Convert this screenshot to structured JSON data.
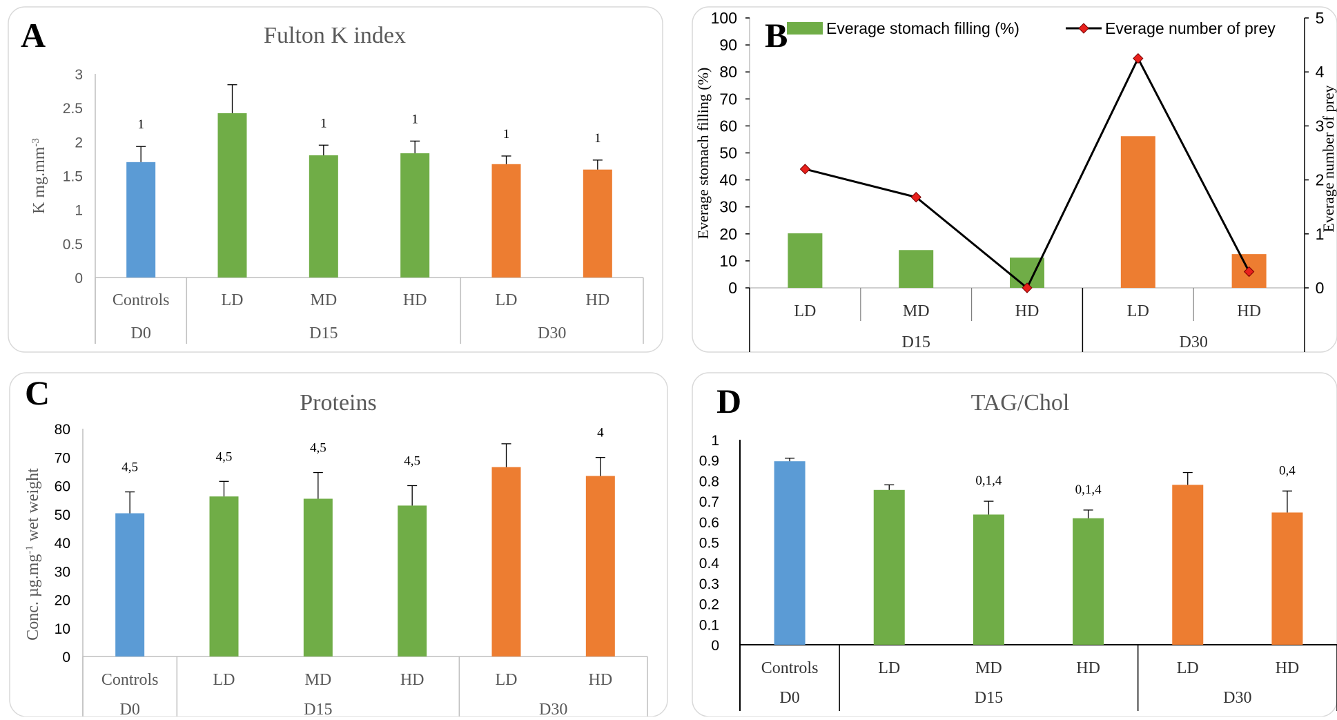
{
  "colors": {
    "blue": "#5b9bd5",
    "green": "#70ad47",
    "orange": "#ed7d31",
    "line": "#000000",
    "marker": "#e8201c",
    "title": "#595959",
    "axis": "#595959",
    "panel_border": "#d9d9d9"
  },
  "chart_data": [
    {
      "type": "bar",
      "panel_label": "A",
      "title": "Fulton K index",
      "ylabel": "K mg.mm",
      "ylabel_sup": "-3",
      "ylim": [
        0,
        3
      ],
      "yticks": [
        0,
        0.5,
        1,
        1.5,
        2,
        2.5,
        3
      ],
      "ytick_labels": [
        "0",
        "0.5",
        "1",
        "1.5",
        "2",
        "2.5",
        "3"
      ],
      "categories": [
        "Controls",
        "LD",
        "MD",
        "HD",
        "LD",
        "HD"
      ],
      "groups": [
        {
          "label": "D0",
          "start": 0,
          "end": 0
        },
        {
          "label": "D15",
          "start": 1,
          "end": 3
        },
        {
          "label": "D30",
          "start": 4,
          "end": 5
        }
      ],
      "values": [
        1.7,
        2.42,
        1.8,
        1.83,
        1.67,
        1.59
      ],
      "errors": [
        0.23,
        0.42,
        0.15,
        0.18,
        0.12,
        0.14
      ],
      "annotations": [
        "1",
        "",
        "1",
        "1",
        "1",
        "1"
      ],
      "bar_colors": [
        "blue",
        "green",
        "green",
        "green",
        "orange",
        "orange"
      ],
      "grid": false
    },
    {
      "type": "bar+line",
      "panel_label": "B",
      "title": "",
      "ylabel": "Everage stomach filling (%)",
      "y2label": "Everage number of prey",
      "ylim": [
        0,
        100
      ],
      "yticks": [
        0,
        10,
        20,
        30,
        40,
        50,
        60,
        70,
        80,
        90,
        100
      ],
      "ytick_labels": [
        "0",
        "10",
        "20",
        "30",
        "40",
        "50",
        "60",
        "70",
        "80",
        "90",
        "100"
      ],
      "y2lim": [
        0,
        5
      ],
      "y2ticks": [
        0,
        1,
        2,
        3,
        4,
        5
      ],
      "y2tick_labels": [
        "0",
        "1",
        "2",
        "3",
        "4",
        "5"
      ],
      "categories": [
        "LD",
        "MD",
        "HD",
        "LD",
        "HD"
      ],
      "groups": [
        {
          "label": "D15",
          "start": 0,
          "end": 2
        },
        {
          "label": "D30",
          "start": 3,
          "end": 4
        }
      ],
      "series": [
        {
          "name": "Everage stomach filling (%)",
          "kind": "bar",
          "axis": "left",
          "values": [
            20.2,
            14,
            11.2,
            56.2,
            12.5
          ]
        },
        {
          "name": "Everage number of prey",
          "kind": "line",
          "axis": "right",
          "values": [
            2.2,
            1.68,
            0,
            4.25,
            0.3
          ]
        }
      ],
      "bar_colors": [
        "green",
        "green",
        "green",
        "orange",
        "orange"
      ],
      "legend_position": "top",
      "grid": false
    },
    {
      "type": "bar",
      "panel_label": "C",
      "title": "Proteins",
      "ylabel": "Conc. µg.mg",
      "ylabel_sup": "-1",
      "ylabel_tail": " wet weight",
      "ylim": [
        0,
        80
      ],
      "yticks": [
        0,
        10,
        20,
        30,
        40,
        50,
        60,
        70,
        80
      ],
      "ytick_labels": [
        "0",
        "10",
        "20",
        "30",
        "40",
        "50",
        "60",
        "70",
        "80"
      ],
      "categories": [
        "Controls",
        "LD",
        "MD",
        "HD",
        "LD",
        "HD"
      ],
      "groups": [
        {
          "label": "D0",
          "start": 0,
          "end": 0
        },
        {
          "label": "D15",
          "start": 1,
          "end": 3
        },
        {
          "label": "D30",
          "start": 4,
          "end": 5
        }
      ],
      "values": [
        50.3,
        56.2,
        55.4,
        53,
        66.5,
        63.4
      ],
      "errors": [
        7.5,
        5.3,
        9.2,
        7,
        8.2,
        6.5
      ],
      "annotations": [
        "4,5",
        "4,5",
        "4,5",
        "4,5",
        "",
        "4"
      ],
      "bar_colors": [
        "blue",
        "green",
        "green",
        "green",
        "orange",
        "orange"
      ],
      "grid": false
    },
    {
      "type": "bar",
      "panel_label": "D",
      "title": "TAG/Chol",
      "ylabel": "",
      "ylim": [
        0,
        1
      ],
      "yticks": [
        0,
        0.1,
        0.2,
        0.3,
        0.4,
        0.5,
        0.6,
        0.7,
        0.8,
        0.9,
        1
      ],
      "ytick_labels": [
        "0",
        "0.1",
        "0.2",
        "0.3",
        "0.4",
        "0.5",
        "0.6",
        "0.7",
        "0.8",
        "0.9",
        "1"
      ],
      "categories": [
        "Controls",
        "LD",
        "MD",
        "HD",
        "LD",
        "HD"
      ],
      "groups": [
        {
          "label": "D0",
          "start": 0,
          "end": 0
        },
        {
          "label": "D15",
          "start": 1,
          "end": 3
        },
        {
          "label": "D30",
          "start": 4,
          "end": 5
        }
      ],
      "values": [
        0.895,
        0.755,
        0.635,
        0.617,
        0.78,
        0.645
      ],
      "errors": [
        0.015,
        0.025,
        0.065,
        0.04,
        0.06,
        0.105
      ],
      "annotations": [
        "",
        "",
        "0,1,4",
        "0,1,4",
        "",
        "0,4"
      ],
      "bar_colors": [
        "blue",
        "green",
        "green",
        "green",
        "orange",
        "orange"
      ],
      "grid": false
    }
  ]
}
